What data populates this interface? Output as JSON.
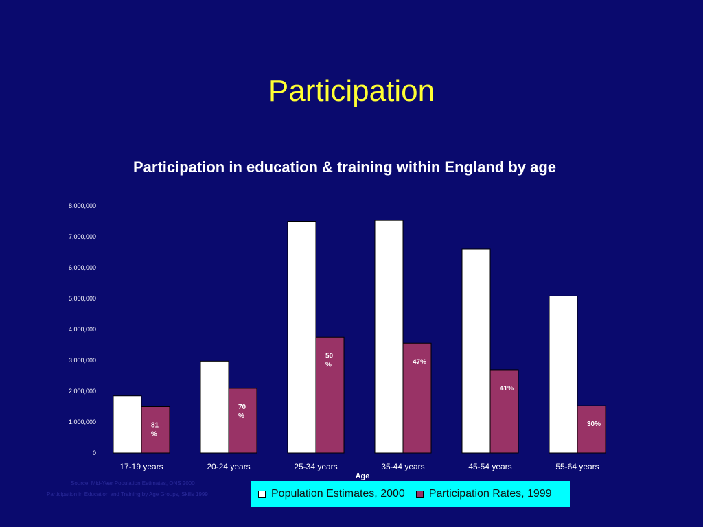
{
  "slide": {
    "title": "Participation"
  },
  "colors": {
    "background": "#0a0a6e",
    "title": "#ffff33",
    "population_bar": "#ffffff",
    "participation_bar": "#993366",
    "legend_bg": "#00ffff"
  },
  "source": {
    "line1": "Source: Mid-Year Population Estimates, ONS 2000",
    "line2": "Participation in Education and Training by Age Groups, Skills 1999"
  },
  "chart_data": {
    "type": "bar",
    "title": "Participation in education & training within England by age",
    "xlabel": "Age",
    "ylabel": "",
    "ylim": [
      0,
      8000000
    ],
    "yticks": [
      "0",
      "1,000,000",
      "2,000,000",
      "3,000,000",
      "4,000,000",
      "5,000,000",
      "6,000,000",
      "7,000,000",
      "8,000,000"
    ],
    "categories": [
      "17-19 years",
      "20-24 years",
      "25-34 years",
      "35-44 years",
      "45-54 years",
      "55-64 years"
    ],
    "series": [
      {
        "name": "Population Estimates, 2000",
        "values": [
          1850000,
          2970000,
          7500000,
          7530000,
          6600000,
          5080000
        ]
      },
      {
        "name": "Participation Rates, 1999",
        "values": [
          1500000,
          2090000,
          3750000,
          3550000,
          2690000,
          1530000
        ],
        "labels": [
          "81\n%",
          "70\n%",
          "50\n%",
          "47%",
          "41%",
          "30%"
        ]
      }
    ],
    "legend_position": "bottom",
    "grid": false
  }
}
